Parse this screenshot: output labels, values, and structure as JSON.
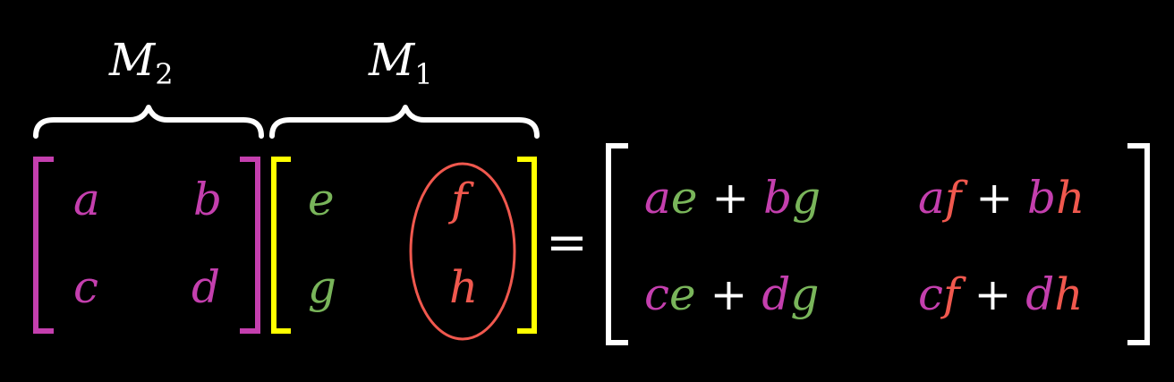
{
  "colors": {
    "magenta": "#c43fae",
    "green": "#79b55a",
    "red": "#f0584e",
    "yellow": "#ffff00",
    "white": "#ffffff"
  },
  "labels": {
    "m2": "M",
    "m2_sub": "2",
    "m1": "M",
    "m1_sub": "1"
  },
  "matrix_m2": {
    "a": "a",
    "b": "b",
    "c": "c",
    "d": "d"
  },
  "matrix_m1": {
    "e": "e",
    "f": "f",
    "g": "g",
    "h": "h"
  },
  "equals": "=",
  "result": {
    "r1c1": {
      "t1a": "a",
      "t1b": "e",
      "op": "+",
      "t2a": "b",
      "t2b": "g"
    },
    "r1c2": {
      "t1a": "a",
      "t1b": "f",
      "op": "+",
      "t2a": "b",
      "t2b": "h"
    },
    "r2c1": {
      "t1a": "c",
      "t1b": "e",
      "op": "+",
      "t2a": "d",
      "t2b": "g"
    },
    "r2c2": {
      "t1a": "c",
      "t1b": "f",
      "op": "+",
      "t2a": "d",
      "t2b": "h"
    }
  }
}
